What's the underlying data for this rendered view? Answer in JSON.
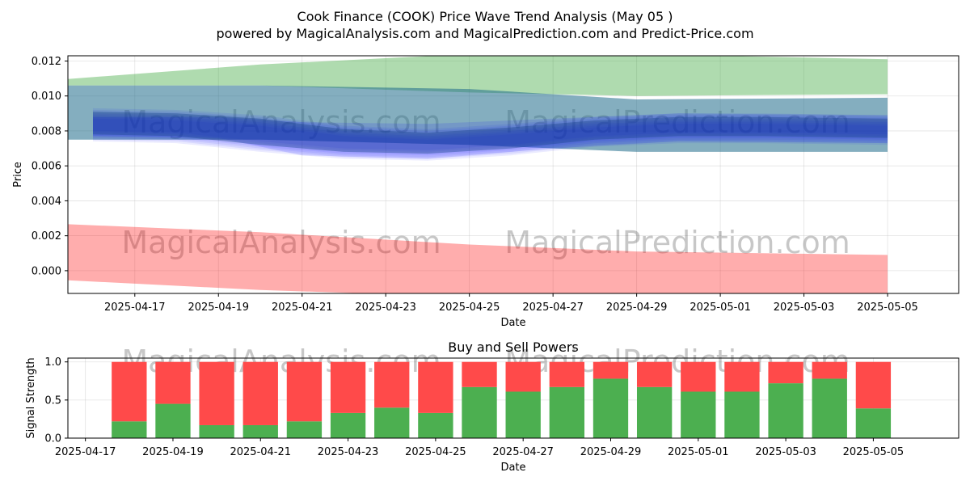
{
  "title_line1": "Cook Finance (COOK) Price Wave Trend Analysis (May 05 )",
  "title_line2": "powered by MagicalAnalysis.com and MagicalPrediction.com and Predict-Price.com",
  "watermarks": [
    "MagicalAnalysis.com",
    "MagicalPrediction.com"
  ],
  "colors": {
    "upper_band": "#2ca02c",
    "lower_band": "#ff0000",
    "wave_band": "#0000ff",
    "teal_band": "#1f6b8a",
    "buy": "#4caf50",
    "sell": "#ff4a4a"
  },
  "chart_data": [
    {
      "type": "area",
      "title": "",
      "xlabel": "Date",
      "ylabel": "Price",
      "ylim": [
        -0.0013,
        0.0123
      ],
      "xlim": [
        "2025-04-15",
        "2025-05-06"
      ],
      "grid": true,
      "x_tick_labels": [
        "2025-04-17",
        "2025-04-19",
        "2025-04-21",
        "2025-04-23",
        "2025-04-25",
        "2025-04-27",
        "2025-04-29",
        "2025-05-01",
        "2025-05-03",
        "2025-05-05"
      ],
      "y_tick_labels": [
        "0.000",
        "0.002",
        "0.004",
        "0.006",
        "0.008",
        "0.010",
        "0.012"
      ],
      "y_ticks": [
        0,
        0.002,
        0.004,
        0.006,
        0.008,
        0.01,
        0.012
      ],
      "series": [
        {
          "x": [
            "2025-04-15",
            "2025-04-20",
            "2025-04-25",
            "2025-04-29",
            "2025-05-05"
          ],
          "upper": [
            0.0109,
            0.0118,
            0.0124,
            0.0124,
            0.0121
          ],
          "lower": [
            0.0106,
            0.0106,
            0.0102,
            0.01,
            0.0101
          ]
        },
        {
          "x": [
            "2025-04-15",
            "2025-04-20",
            "2025-04-25",
            "2025-04-29",
            "2025-05-05"
          ],
          "upper": [
            0.0106,
            0.0106,
            0.0104,
            0.0098,
            0.0099
          ],
          "lower": [
            0.0075,
            0.0075,
            0.0072,
            0.0068,
            0.0068
          ]
        },
        {
          "x": [
            "2025-04-16",
            "2025-04-19",
            "2025-04-21",
            "2025-04-24",
            "2025-04-27",
            "2025-04-30",
            "2025-05-05"
          ],
          "upper": [
            0.0088,
            0.0088,
            0.0085,
            0.0084,
            0.0087,
            0.009,
            0.0089
          ],
          "lower": [
            0.0077,
            0.0076,
            0.0066,
            0.0064,
            0.007,
            0.0074,
            0.0073
          ]
        },
        {
          "x": [
            "2025-04-16",
            "2025-04-18",
            "2025-04-20",
            "2025-04-22",
            "2025-04-24",
            "2025-04-26",
            "2025-04-28",
            "2025-04-30",
            "2025-05-02",
            "2025-05-05"
          ],
          "upper": [
            0.0091,
            0.009,
            0.0087,
            0.0081,
            0.0079,
            0.0082,
            0.0086,
            0.0088,
            0.0088,
            0.0087
          ],
          "lower": [
            0.0078,
            0.0077,
            0.0072,
            0.0068,
            0.0067,
            0.007,
            0.0075,
            0.0077,
            0.0077,
            0.0076
          ]
        },
        {
          "x": [
            "2025-04-15",
            "2025-04-20",
            "2025-04-25",
            "2025-04-29",
            "2025-05-05"
          ],
          "upper": [
            0.0027,
            0.0022,
            0.0015,
            0.0011,
            0.0009
          ],
          "lower": [
            -0.0005,
            -0.0011,
            -0.0015,
            -0.0016,
            -0.0016
          ]
        }
      ]
    },
    {
      "type": "bar",
      "title": "Buy and Sell Powers",
      "xlabel": "Date",
      "ylabel": "Signal Strength",
      "ylim": [
        0,
        1.05
      ],
      "y_ticks": [
        0,
        0.5,
        1
      ],
      "y_tick_labels": [
        "0.0",
        "0.5",
        "1.0"
      ],
      "x_tick_labels": [
        "2025-04-17",
        "2025-04-19",
        "2025-04-21",
        "2025-04-23",
        "2025-04-25",
        "2025-04-27",
        "2025-04-29",
        "2025-05-01",
        "2025-05-03",
        "2025-05-05"
      ],
      "categories": [
        "2025-04-18",
        "2025-04-19",
        "2025-04-20",
        "2025-04-21",
        "2025-04-22",
        "2025-04-23",
        "2025-04-24",
        "2025-04-25",
        "2025-04-26",
        "2025-04-27",
        "2025-04-28",
        "2025-04-29",
        "2025-04-30",
        "2025-05-01",
        "2025-05-02",
        "2025-05-03",
        "2025-05-04",
        "2025-05-05"
      ],
      "series": [
        {
          "values": [
            0.22,
            0.45,
            0.17,
            0.17,
            0.22,
            0.33,
            0.4,
            0.33,
            0.67,
            0.61,
            0.67,
            0.78,
            0.67,
            0.61,
            0.61,
            0.72,
            0.78,
            0.39
          ]
        },
        {
          "values": [
            0.78,
            0.55,
            0.83,
            0.83,
            0.78,
            0.67,
            0.6,
            0.67,
            0.33,
            0.39,
            0.33,
            0.22,
            0.33,
            0.39,
            0.39,
            0.28,
            0.22,
            0.61
          ]
        }
      ]
    }
  ]
}
